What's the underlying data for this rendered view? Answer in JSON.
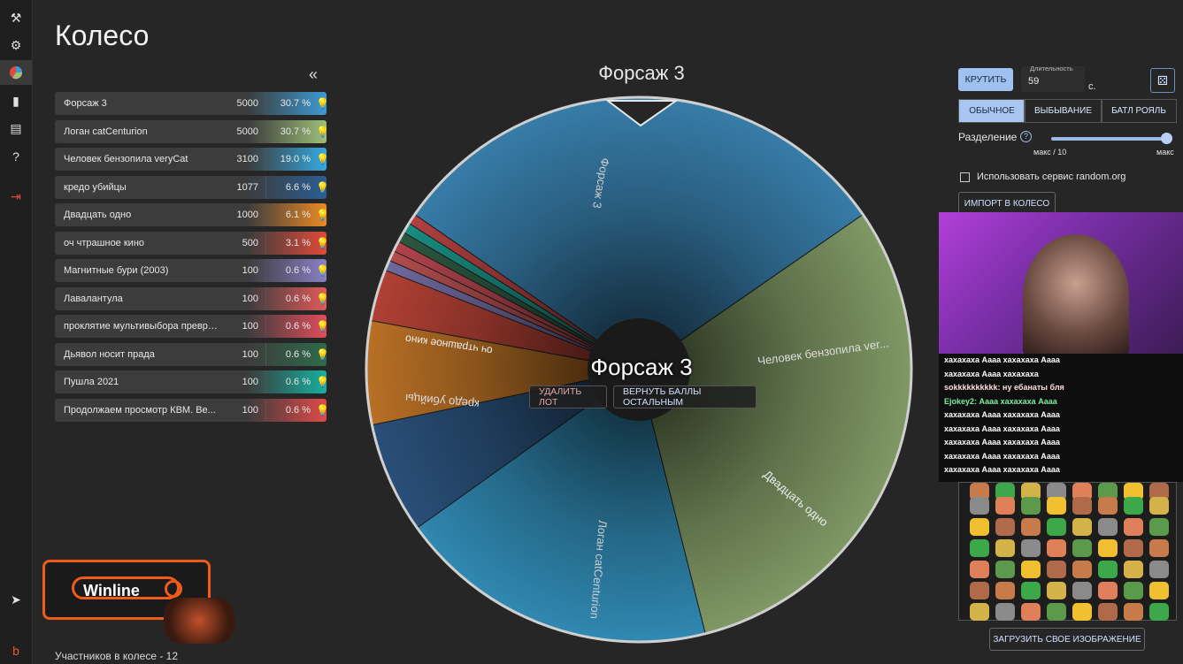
{
  "app": {
    "title": "Колесо"
  },
  "sidebar": {
    "icons": [
      "gavel-icon",
      "gear-icon",
      "pie-chart-icon",
      "bar-chart-icon",
      "clipboard-icon",
      "help-icon",
      "logout-icon",
      "telegram-icon",
      "brand-icon"
    ]
  },
  "list": {
    "collapse_label": "«",
    "rows": [
      {
        "name": "Форсаж 3",
        "amount": "5000",
        "percent": "30.7 %",
        "color": "#3d9ad4"
      },
      {
        "name": "Логан catCenturion",
        "amount": "5000",
        "percent": "30.7 %",
        "color": "#9dbf7a"
      },
      {
        "name": "Человек бензопила veryCat",
        "amount": "3100",
        "percent": "19.0 %",
        "color": "#34a9e0"
      },
      {
        "name": "кредо убийцы",
        "amount": "1077",
        "percent": "6.6 %",
        "color": "#2b5e94"
      },
      {
        "name": "Двадцать одно",
        "amount": "1000",
        "percent": "6.1 %",
        "color": "#e98a25"
      },
      {
        "name": "оч чтрашное кино",
        "amount": "500",
        "percent": "3.1 %",
        "color": "#e04a3a"
      },
      {
        "name": "Магнитные бури (2003)",
        "amount": "100",
        "percent": "0.6 %",
        "color": "#8a80c8"
      },
      {
        "name": "Лавалантула",
        "amount": "100",
        "percent": "0.6 %",
        "color": "#e05a5a"
      },
      {
        "name": "проклятие мультивыбора превра...",
        "amount": "100",
        "percent": "0.6 %",
        "color": "#e04d5a"
      },
      {
        "name": "Дьявол носит прада",
        "amount": "100",
        "percent": "0.6 %",
        "color": "#2f6a4a"
      },
      {
        "name": "Пушла 2021",
        "amount": "100",
        "percent": "0.6 %",
        "color": "#16b0a0"
      },
      {
        "name": "Продолжаем просмотр КВМ. Ве...",
        "amount": "100",
        "percent": "0.6 %",
        "color": "#e04a4a"
      }
    ],
    "count_label": "Участников в колесе - 12"
  },
  "wheel": {
    "title": "Форсаж 3",
    "winner": "Форсаж 3",
    "delete_label": "УДАЛИТЬ ЛОТ",
    "return_label": "ВЕРНУТЬ БАЛЛЫ ОСТАЛЬНЫМ",
    "segment_labels": [
      "Форсаж 3",
      "Человек бензопила ver...",
      "Двадцать одно",
      "Логан catCenturion",
      "кредо убийцы",
      "оч чтрашное кино"
    ]
  },
  "controls": {
    "spin_label": "КРУТИТЬ",
    "duration_label": "Длительность",
    "duration_value": "59",
    "duration_unit": "с.",
    "modes": [
      "ОБЫЧНОЕ",
      "ВЫБЫВАНИЕ",
      "БАТЛ РОЯЛЬ"
    ],
    "split_label": "Разделение",
    "split_min": "макс / 10",
    "split_max": "макс",
    "split_value": 1.0,
    "random_org_label": "Использовать сервис random.org",
    "import_label": "ИМПОРТ В КОЛЕСО",
    "upload_label": "ЗАГРУЗИТЬ СВОЕ ИЗОБРАЖЕНИЕ"
  },
  "chat": {
    "lines": [
      "хахахаха Аааа хахахаха Аааа",
      "хахахаха Аааа хахахаха",
      "sokkkkkkkkkk: ну ебанаты бля",
      "Ejokey2: Аааа хахахаха Аааа",
      "хахахаха Аааа хахахаха Аааа",
      "хахахаха Аааа хахахаха Аааа",
      "хахахаха Аааа хахахаха Аааа",
      "хахахаха Аааа хахахаха Аааа",
      "хахахаха Аааа хахахаха Аааа"
    ]
  },
  "ad": {
    "brand": "Winline"
  }
}
